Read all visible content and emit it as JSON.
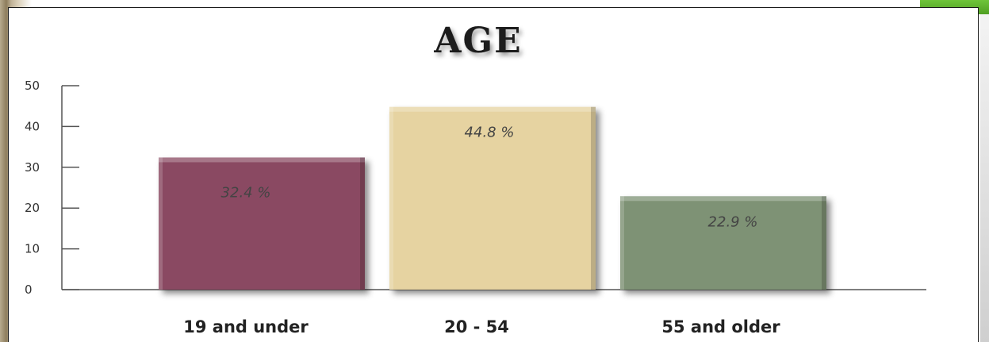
{
  "chart_data": {
    "type": "bar",
    "title": "AGE",
    "categories": [
      "19 and under",
      "20 - 54",
      "55 and older"
    ],
    "values": [
      32.4,
      44.8,
      22.9
    ],
    "data_labels": [
      "32.4 %",
      "44.8 %",
      "22.9 %"
    ],
    "yticks": [
      0,
      10,
      20,
      30,
      40,
      50
    ],
    "ylim": [
      0,
      50
    ],
    "xlabel": "",
    "ylabel": "",
    "grid": false,
    "legend": "none",
    "colors": [
      "#8a4a62",
      "#e6d3a1",
      "#7e9274"
    ]
  }
}
